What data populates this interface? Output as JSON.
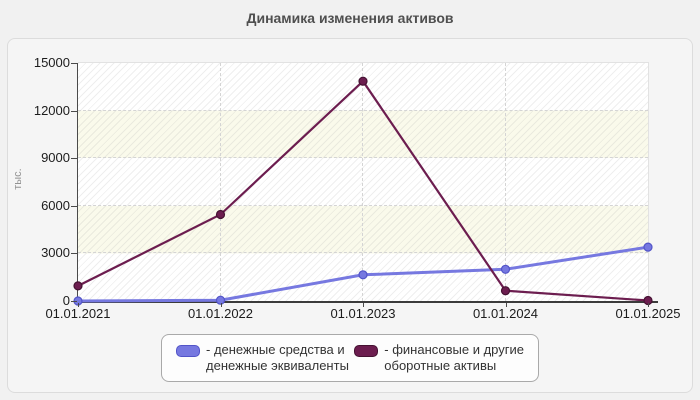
{
  "title": "Динамика изменения активов",
  "chart_data": {
    "type": "line",
    "title": "Динамика изменения активов",
    "ylabel": "тыс.",
    "ylim": [
      0,
      15000
    ],
    "yticks": [
      0,
      3000,
      6000,
      9000,
      12000,
      15000
    ],
    "x": [
      "01.01.2021",
      "01.01.2022",
      "01.01.2023",
      "01.01.2024",
      "01.01.2025"
    ],
    "series": [
      {
        "name": "денежные средства и денежные эквиваленты",
        "legend_lines": [
          "- денежные средства и",
          "денежные эквиваленты"
        ],
        "color": "#7678e0",
        "edge_color": "#5254c8",
        "values": [
          0,
          50,
          1650,
          2000,
          3400
        ]
      },
      {
        "name": "финансовые и другие оборотные активы",
        "legend_lines": [
          "- финансовые и другие",
          "оборотные активы"
        ],
        "color": "#6c1d4f",
        "edge_color": "#451232",
        "values": [
          950,
          5450,
          13850,
          650,
          30
        ]
      }
    ],
    "grid": "dashed",
    "legend_position": "bottom"
  }
}
